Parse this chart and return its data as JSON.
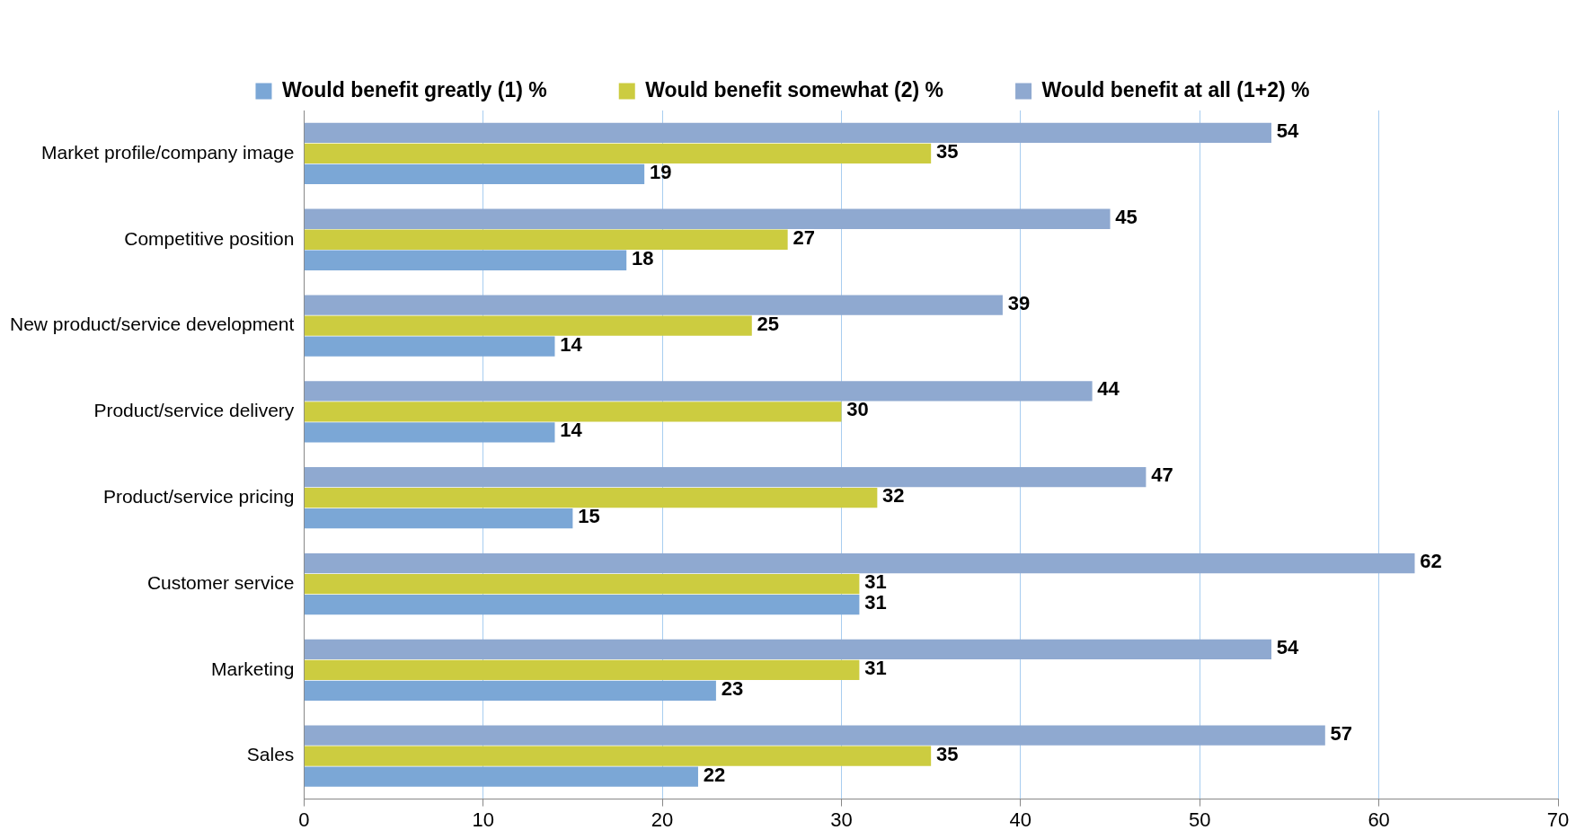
{
  "chart_data": {
    "type": "bar",
    "orientation": "horizontal",
    "categories": [
      "Market profile/company image",
      "Competitive position",
      "New product/service development",
      "Product/service delivery",
      "Product/service pricing",
      "Customer service",
      "Marketing",
      "Sales"
    ],
    "series": [
      {
        "name": "Would benefit greatly (1) %",
        "color": "#7ba7d6",
        "values": [
          19,
          18,
          14,
          14,
          15,
          31,
          23,
          22
        ]
      },
      {
        "name": "Would benefit somewhat (2) %",
        "color": "#cccc40",
        "values": [
          35,
          27,
          25,
          30,
          32,
          31,
          31,
          35
        ]
      },
      {
        "name": "Would benefit at all (1+2) %",
        "color": "#8fa9d0",
        "values": [
          54,
          45,
          39,
          44,
          47,
          62,
          54,
          57
        ]
      }
    ],
    "xlim": [
      0,
      70
    ],
    "xticks": [
      0,
      10,
      20,
      30,
      40,
      50,
      60,
      70
    ],
    "grid": "x",
    "legend": "top",
    "data_labels": true
  }
}
